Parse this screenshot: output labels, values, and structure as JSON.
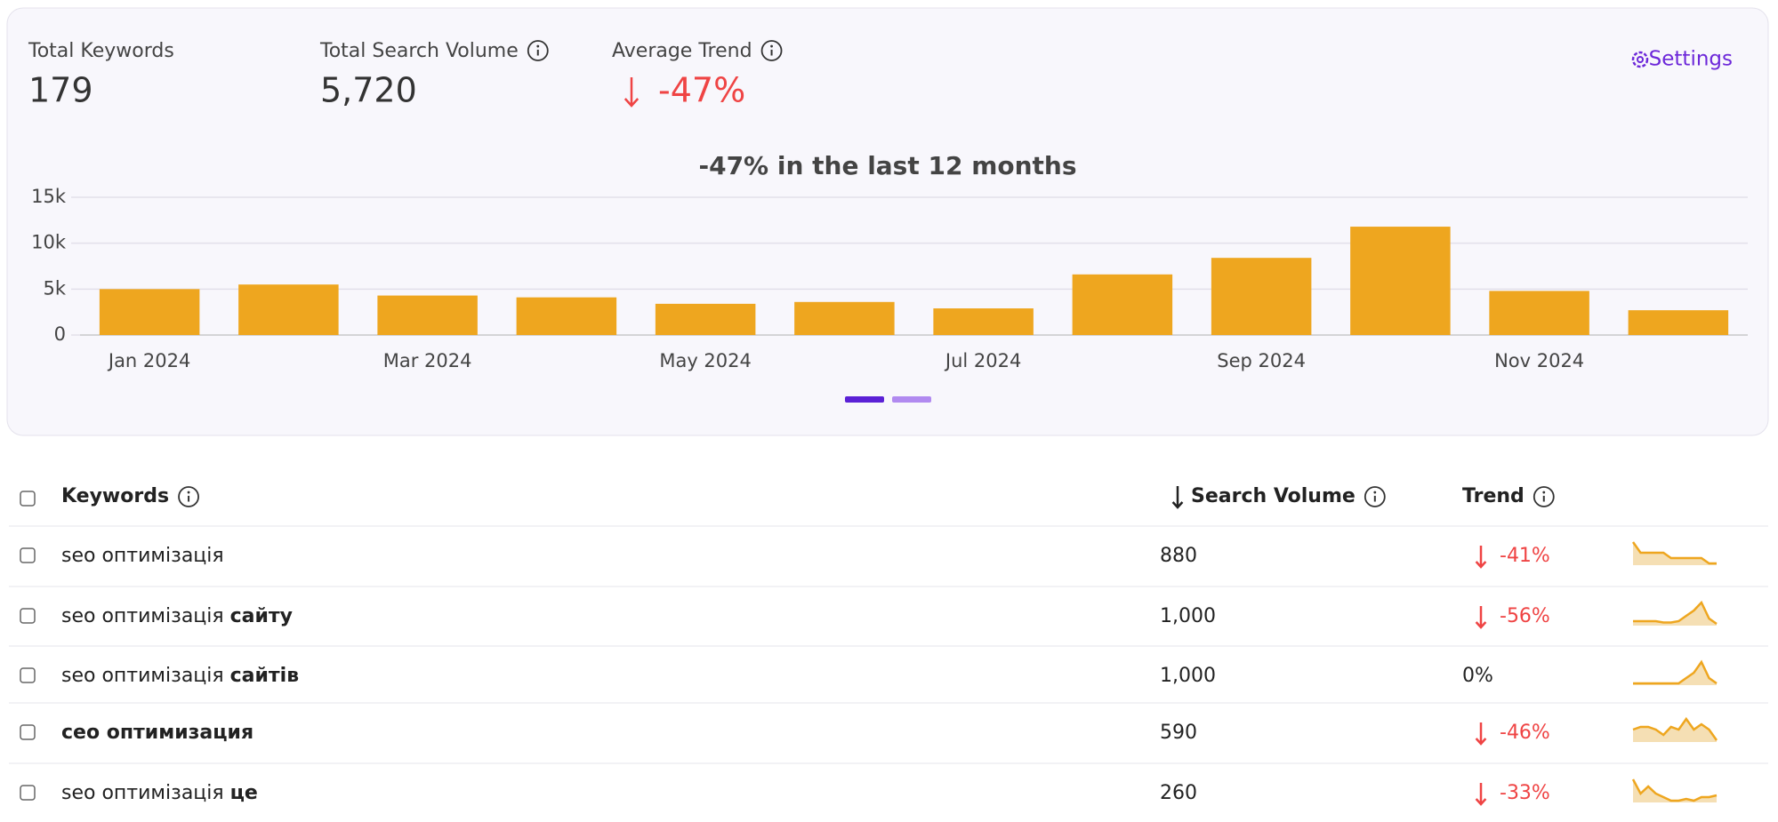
{
  "summary": [
    {
      "label": "Total Keywords",
      "value": "179"
    },
    {
      "label": "Total Search Volume",
      "value": "5,720"
    },
    {
      "label": "Average Trend",
      "value": "-47%"
    }
  ],
  "settings": "Settings",
  "chart_data": {
    "type": "bar",
    "title": "-47% in the last 12 months",
    "categories": [
      "Jan 2024",
      null,
      "Mar 2024",
      null,
      "May 2024",
      null,
      "Jul 2024",
      null,
      "Sep 2024",
      null,
      "Nov 2024",
      null
    ],
    "values": [
      5000,
      5500,
      4300,
      4100,
      3400,
      3600,
      2900,
      6600,
      8400,
      11800,
      4800,
      2700
    ],
    "color": "#eea61f",
    "ylim": [
      0,
      15000
    ],
    "yticks": [
      0,
      {
        "value": 5000,
        "label": "5k"
      },
      {
        "value": 10000,
        "label": "10k"
      },
      {
        "value": 15000,
        "label": "15k"
      }
    ],
    "grid": true
  },
  "table": {
    "headers": [
      "Keywords",
      "Search Volume",
      "Trend"
    ],
    "rows": [
      {
        "keyword": {
          "text": "seo оптимізація"
        },
        "volume": "880",
        "trend": "-41%",
        "spark": [
          9,
          7,
          7,
          7,
          7,
          6,
          6,
          6,
          6,
          6,
          5,
          5
        ]
      },
      {
        "keyword": {
          "text": "seo оптимізація",
          "strong": "сайту"
        },
        "volume": "1,000",
        "trend": "-56%",
        "spark": [
          3,
          3,
          3,
          3,
          2.5,
          2.5,
          3,
          5,
          7,
          10,
          4,
          2
        ]
      },
      {
        "keyword": {
          "text": "seo оптимізація",
          "strong": "сайтів"
        },
        "volume": "1,000",
        "trend": "0%",
        "spark": [
          2,
          2,
          2,
          2,
          2,
          2,
          2,
          4,
          6,
          10,
          4,
          2
        ]
      },
      {
        "keyword": {
          "strong": "сео оптимизация"
        },
        "volume": "590",
        "trend": "-46%",
        "spark": [
          6,
          6.5,
          6.5,
          6,
          5,
          6.5,
          6,
          8,
          6,
          7,
          6,
          4
        ]
      },
      {
        "keyword": {
          "text": "seo оптимізація",
          "strong": "це"
        },
        "volume": "260",
        "trend": "-33%",
        "spark": [
          8,
          4,
          6,
          4,
          3,
          2,
          2,
          2.5,
          2,
          3,
          3,
          3.5
        ]
      }
    ]
  }
}
